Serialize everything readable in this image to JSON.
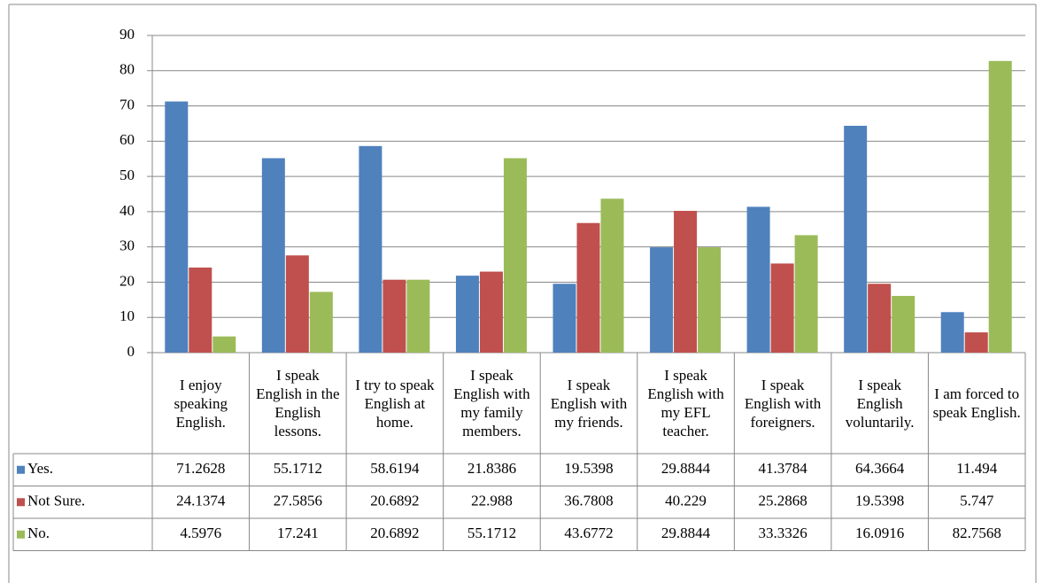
{
  "chart_data": {
    "type": "bar",
    "categories": [
      "I enjoy speaking English.",
      "I speak English in the English lessons.",
      "I try to speak English at home.",
      "I speak English with my family members.",
      "I speak English with my friends.",
      "I speak English with my EFL teacher.",
      "I speak English with foreigners.",
      "I speak English voluntarily.",
      "I am forced to speak English."
    ],
    "series": [
      {
        "name": "Yes.",
        "color": "#4f81bd",
        "values": [
          71.2628,
          55.1712,
          58.6194,
          21.8386,
          19.5398,
          29.8844,
          41.3784,
          64.3664,
          11.494
        ]
      },
      {
        "name": "Not Sure.",
        "color": "#c0504d",
        "values": [
          24.1374,
          27.5856,
          20.6892,
          22.988,
          36.7808,
          40.229,
          25.2868,
          19.5398,
          5.747
        ]
      },
      {
        "name": "No.",
        "color": "#9bbb59",
        "values": [
          4.5976,
          17.241,
          20.6892,
          55.1712,
          43.6772,
          29.8844,
          33.3326,
          16.0916,
          82.7568
        ]
      }
    ],
    "ylim": [
      0,
      90
    ],
    "yticks": [
      0,
      10,
      20,
      30,
      40,
      50,
      60,
      70,
      80,
      90
    ],
    "grid": true,
    "data_table": true
  }
}
